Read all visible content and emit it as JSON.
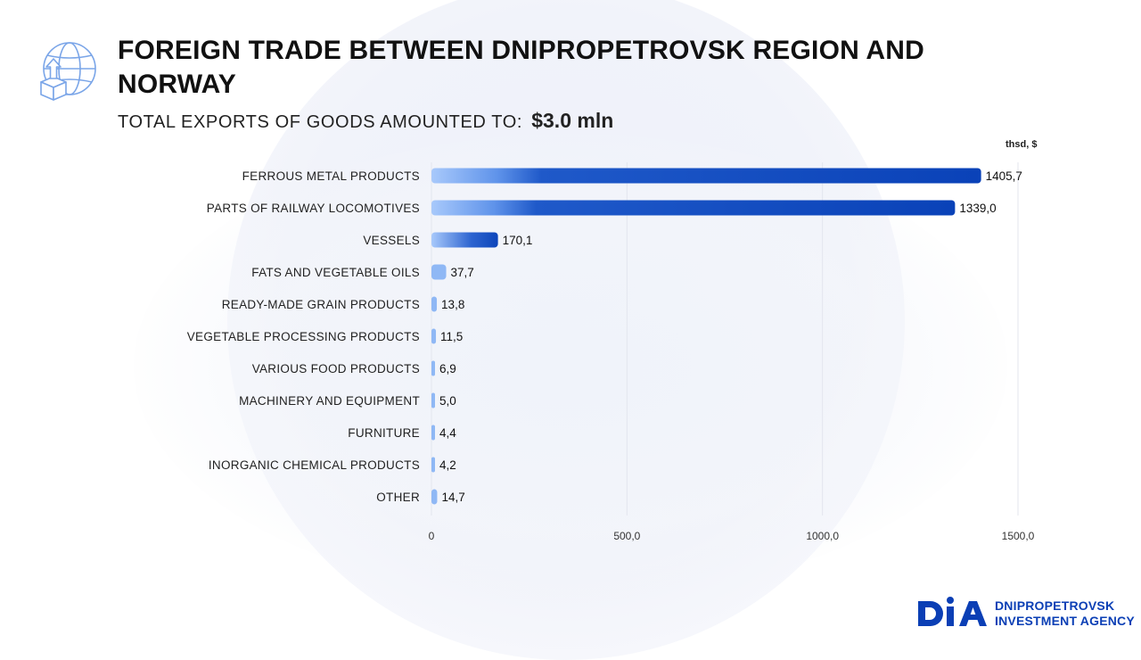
{
  "header": {
    "title": "FOREIGN TRADE BETWEEN DNIPROPETROVSK REGION AND NORWAY",
    "subtitle_prefix": "TOTAL EXPORTS OF GOODS AMOUNTED TO:",
    "subtitle_value": "$3.0 mln",
    "icon": "globe-export-icon"
  },
  "chart_data": {
    "type": "bar",
    "orientation": "horizontal",
    "unit": "thsd, $",
    "categories": [
      "FERROUS METAL PRODUCTS",
      "PARTS OF RAILWAY LOCOMOTIVES",
      "VESSELS",
      "FATS AND VEGETABLE OILS",
      "READY-MADE GRAIN PRODUCTS",
      "VEGETABLE PROCESSING PRODUCTS",
      "VARIOUS FOOD PRODUCTS",
      "MACHINERY AND EQUIPMENT",
      "FURNITURE",
      "INORGANIC CHEMICAL PRODUCTS",
      "OTHER"
    ],
    "values": [
      1405.7,
      1339.0,
      170.1,
      37.7,
      13.8,
      11.5,
      6.9,
      5.0,
      4.4,
      4.2,
      14.7
    ],
    "value_labels": [
      "1405,7",
      "1339,0",
      "170,1",
      "37,7",
      "13,8",
      "11,5",
      "6,9",
      "5,0",
      "4,4",
      "4,2",
      "14,7"
    ],
    "xlim": [
      0,
      1500
    ],
    "xticks": [
      0,
      500,
      1000,
      1500
    ],
    "xtick_labels": [
      "0",
      "500,0",
      "1000,0",
      "1500,0"
    ],
    "grid": true,
    "colors": {
      "bar_start": "#9cc2fa",
      "bar_end": "#0a42b8",
      "bar_light": "#8fb8f5"
    }
  },
  "logo": {
    "mark": "DIA",
    "line1": "DNIPROPETROVSK",
    "line2": "INVESTMENT AGENCY",
    "color": "#0b3fb5"
  }
}
